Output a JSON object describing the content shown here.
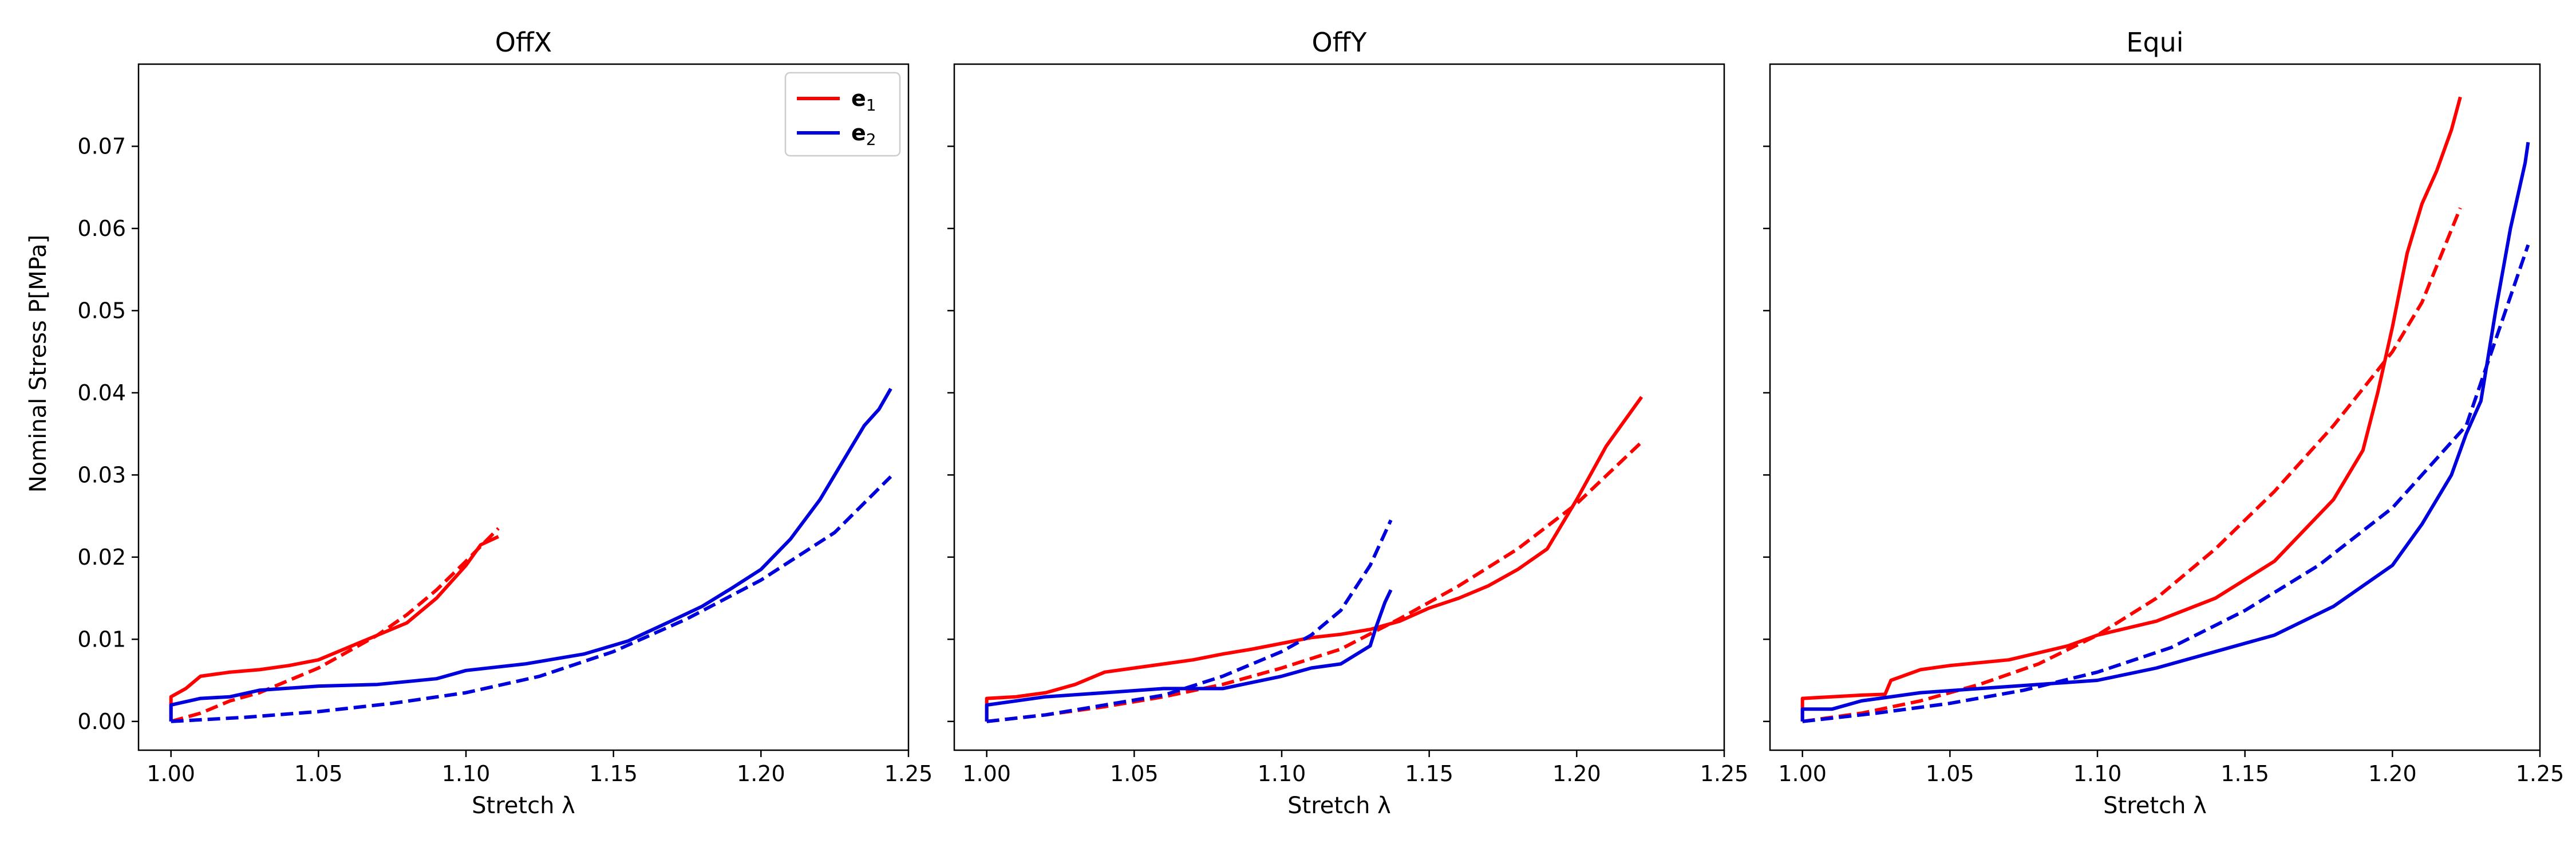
{
  "ylabel": "Nominal Stress P[MPa]",
  "colors": {
    "e1": "#ff0000",
    "e2": "#0000dd"
  },
  "legend": [
    {
      "key": "e1",
      "label": "e",
      "sub": "1"
    },
    {
      "key": "e2",
      "label": "e",
      "sub": "2"
    }
  ],
  "chart_data": [
    {
      "type": "line",
      "title": "OffX",
      "xlabel": "Stretch λ",
      "xlim": [
        0.989,
        1.25
      ],
      "ylim": [
        -0.0035,
        0.08
      ],
      "xticks": [
        "1.00",
        "1.05",
        "1.10",
        "1.15",
        "1.20",
        "1.25"
      ],
      "yticks": [
        "0.00",
        "0.01",
        "0.02",
        "0.03",
        "0.04",
        "0.05",
        "0.06",
        "0.07"
      ],
      "legend_position": "upper right",
      "series": [
        {
          "key": "e1",
          "style": "solid",
          "points": [
            [
              1.0,
              0.0
            ],
            [
              1.0,
              0.003
            ],
            [
              1.005,
              0.004
            ],
            [
              1.01,
              0.0055
            ],
            [
              1.02,
              0.006
            ],
            [
              1.03,
              0.0063
            ],
            [
              1.04,
              0.0068
            ],
            [
              1.05,
              0.0075
            ],
            [
              1.06,
              0.009
            ],
            [
              1.07,
              0.0105
            ],
            [
              1.08,
              0.012
            ],
            [
              1.09,
              0.015
            ],
            [
              1.1,
              0.019
            ],
            [
              1.105,
              0.0215
            ],
            [
              1.111,
              0.0225
            ]
          ]
        },
        {
          "key": "e1",
          "style": "dashed",
          "points": [
            [
              1.0,
              0.0
            ],
            [
              1.01,
              0.001
            ],
            [
              1.02,
              0.0025
            ],
            [
              1.03,
              0.0035
            ],
            [
              1.04,
              0.005
            ],
            [
              1.05,
              0.0065
            ],
            [
              1.06,
              0.0085
            ],
            [
              1.07,
              0.0105
            ],
            [
              1.08,
              0.013
            ],
            [
              1.09,
              0.016
            ],
            [
              1.1,
              0.0195
            ],
            [
              1.111,
              0.0235
            ]
          ]
        },
        {
          "key": "e2",
          "style": "solid",
          "points": [
            [
              1.0,
              0.0
            ],
            [
              1.0,
              0.002
            ],
            [
              1.01,
              0.0028
            ],
            [
              1.02,
              0.003
            ],
            [
              1.03,
              0.0038
            ],
            [
              1.05,
              0.0043
            ],
            [
              1.07,
              0.0045
            ],
            [
              1.09,
              0.0052
            ],
            [
              1.1,
              0.0062
            ],
            [
              1.12,
              0.007
            ],
            [
              1.14,
              0.0082
            ],
            [
              1.155,
              0.0098
            ],
            [
              1.17,
              0.0123
            ],
            [
              1.18,
              0.014
            ],
            [
              1.19,
              0.0162
            ],
            [
              1.2,
              0.0185
            ],
            [
              1.21,
              0.0222
            ],
            [
              1.22,
              0.027
            ],
            [
              1.23,
              0.033
            ],
            [
              1.235,
              0.036
            ],
            [
              1.24,
              0.038
            ],
            [
              1.244,
              0.0405
            ]
          ]
        },
        {
          "key": "e2",
          "style": "dashed",
          "points": [
            [
              1.0,
              0.0
            ],
            [
              1.025,
              0.0005
            ],
            [
              1.05,
              0.0012
            ],
            [
              1.075,
              0.0022
            ],
            [
              1.1,
              0.0035
            ],
            [
              1.125,
              0.0055
            ],
            [
              1.15,
              0.0085
            ],
            [
              1.175,
              0.0125
            ],
            [
              1.2,
              0.0172
            ],
            [
              1.225,
              0.023
            ],
            [
              1.244,
              0.0298
            ]
          ]
        }
      ]
    },
    {
      "type": "line",
      "title": "OffY",
      "xlabel": "Stretch λ",
      "xlim": [
        0.989,
        1.25
      ],
      "ylim": [
        -0.0035,
        0.08
      ],
      "xticks": [
        "1.00",
        "1.05",
        "1.10",
        "1.15",
        "1.20",
        "1.25"
      ],
      "yticks": [],
      "series": [
        {
          "key": "e1",
          "style": "solid",
          "points": [
            [
              1.0,
              0.0
            ],
            [
              1.0,
              0.0028
            ],
            [
              1.01,
              0.003
            ],
            [
              1.02,
              0.0035
            ],
            [
              1.03,
              0.0045
            ],
            [
              1.04,
              0.006
            ],
            [
              1.05,
              0.0065
            ],
            [
              1.06,
              0.007
            ],
            [
              1.07,
              0.0075
            ],
            [
              1.08,
              0.0082
            ],
            [
              1.09,
              0.0088
            ],
            [
              1.1,
              0.0095
            ],
            [
              1.11,
              0.0102
            ],
            [
              1.12,
              0.0106
            ],
            [
              1.13,
              0.0112
            ],
            [
              1.14,
              0.0122
            ],
            [
              1.15,
              0.0138
            ],
            [
              1.16,
              0.015
            ],
            [
              1.17,
              0.0165
            ],
            [
              1.18,
              0.0185
            ],
            [
              1.19,
              0.021
            ],
            [
              1.2,
              0.027
            ],
            [
              1.21,
              0.0335
            ],
            [
              1.222,
              0.0395
            ]
          ]
        },
        {
          "key": "e1",
          "style": "dashed",
          "points": [
            [
              1.0,
              0.0
            ],
            [
              1.02,
              0.0008
            ],
            [
              1.04,
              0.0018
            ],
            [
              1.06,
              0.003
            ],
            [
              1.08,
              0.0045
            ],
            [
              1.1,
              0.0065
            ],
            [
              1.12,
              0.0088
            ],
            [
              1.14,
              0.0125
            ],
            [
              1.16,
              0.0165
            ],
            [
              1.18,
              0.021
            ],
            [
              1.2,
              0.0265
            ],
            [
              1.222,
              0.034
            ]
          ]
        },
        {
          "key": "e2",
          "style": "solid",
          "points": [
            [
              1.0,
              0.0
            ],
            [
              1.0,
              0.002
            ],
            [
              1.02,
              0.003
            ],
            [
              1.04,
              0.0035
            ],
            [
              1.06,
              0.004
            ],
            [
              1.08,
              0.004
            ],
            [
              1.1,
              0.0055
            ],
            [
              1.11,
              0.0065
            ],
            [
              1.12,
              0.007
            ],
            [
              1.13,
              0.0092
            ],
            [
              1.132,
              0.0115
            ],
            [
              1.135,
              0.0145
            ],
            [
              1.137,
              0.016
            ]
          ]
        },
        {
          "key": "e2",
          "style": "dashed",
          "points": [
            [
              1.0,
              0.0
            ],
            [
              1.02,
              0.0008
            ],
            [
              1.04,
              0.002
            ],
            [
              1.06,
              0.0032
            ],
            [
              1.08,
              0.0055
            ],
            [
              1.1,
              0.0085
            ],
            [
              1.11,
              0.0105
            ],
            [
              1.12,
              0.0135
            ],
            [
              1.13,
              0.019
            ],
            [
              1.137,
              0.0245
            ]
          ]
        }
      ]
    },
    {
      "type": "line",
      "title": "Equi",
      "xlabel": "Stretch λ",
      "xlim": [
        0.989,
        1.25
      ],
      "ylim": [
        -0.0035,
        0.08
      ],
      "xticks": [
        "1.00",
        "1.05",
        "1.10",
        "1.15",
        "1.20",
        "1.25"
      ],
      "yticks": [],
      "series": [
        {
          "key": "e1",
          "style": "solid",
          "points": [
            [
              1.0,
              0.0
            ],
            [
              1.0,
              0.0028
            ],
            [
              1.01,
              0.003
            ],
            [
              1.02,
              0.0032
            ],
            [
              1.028,
              0.0033
            ],
            [
              1.03,
              0.005
            ],
            [
              1.04,
              0.0063
            ],
            [
              1.05,
              0.0068
            ],
            [
              1.07,
              0.0075
            ],
            [
              1.09,
              0.0092
            ],
            [
              1.1,
              0.0105
            ],
            [
              1.12,
              0.0122
            ],
            [
              1.14,
              0.015
            ],
            [
              1.16,
              0.0195
            ],
            [
              1.18,
              0.027
            ],
            [
              1.19,
              0.033
            ],
            [
              1.195,
              0.04
            ],
            [
              1.2,
              0.048
            ],
            [
              1.205,
              0.057
            ],
            [
              1.21,
              0.063
            ],
            [
              1.215,
              0.067
            ],
            [
              1.22,
              0.072
            ],
            [
              1.223,
              0.076
            ]
          ]
        },
        {
          "key": "e1",
          "style": "dashed",
          "points": [
            [
              1.0,
              0.0
            ],
            [
              1.02,
              0.001
            ],
            [
              1.04,
              0.0025
            ],
            [
              1.06,
              0.0045
            ],
            [
              1.08,
              0.007
            ],
            [
              1.1,
              0.0105
            ],
            [
              1.12,
              0.015
            ],
            [
              1.14,
              0.021
            ],
            [
              1.16,
              0.028
            ],
            [
              1.18,
              0.036
            ],
            [
              1.2,
              0.045
            ],
            [
              1.21,
              0.051
            ],
            [
              1.223,
              0.0625
            ]
          ]
        },
        {
          "key": "e2",
          "style": "solid",
          "points": [
            [
              1.0,
              0.0
            ],
            [
              1.0,
              0.0015
            ],
            [
              1.01,
              0.0015
            ],
            [
              1.02,
              0.0025
            ],
            [
              1.04,
              0.0035
            ],
            [
              1.06,
              0.004
            ],
            [
              1.08,
              0.0045
            ],
            [
              1.1,
              0.005
            ],
            [
              1.12,
              0.0065
            ],
            [
              1.14,
              0.0085
            ],
            [
              1.16,
              0.0105
            ],
            [
              1.18,
              0.014
            ],
            [
              1.2,
              0.019
            ],
            [
              1.21,
              0.024
            ],
            [
              1.22,
              0.03
            ],
            [
              1.225,
              0.035
            ],
            [
              1.23,
              0.039
            ],
            [
              1.235,
              0.05
            ],
            [
              1.24,
              0.06
            ],
            [
              1.245,
              0.068
            ],
            [
              1.246,
              0.0705
            ]
          ]
        },
        {
          "key": "e2",
          "style": "dashed",
          "points": [
            [
              1.0,
              0.0
            ],
            [
              1.025,
              0.001
            ],
            [
              1.05,
              0.0022
            ],
            [
              1.075,
              0.0038
            ],
            [
              1.1,
              0.006
            ],
            [
              1.125,
              0.009
            ],
            [
              1.15,
              0.0135
            ],
            [
              1.175,
              0.019
            ],
            [
              1.2,
              0.026
            ],
            [
              1.225,
              0.036
            ],
            [
              1.246,
              0.058
            ]
          ]
        }
      ]
    }
  ]
}
